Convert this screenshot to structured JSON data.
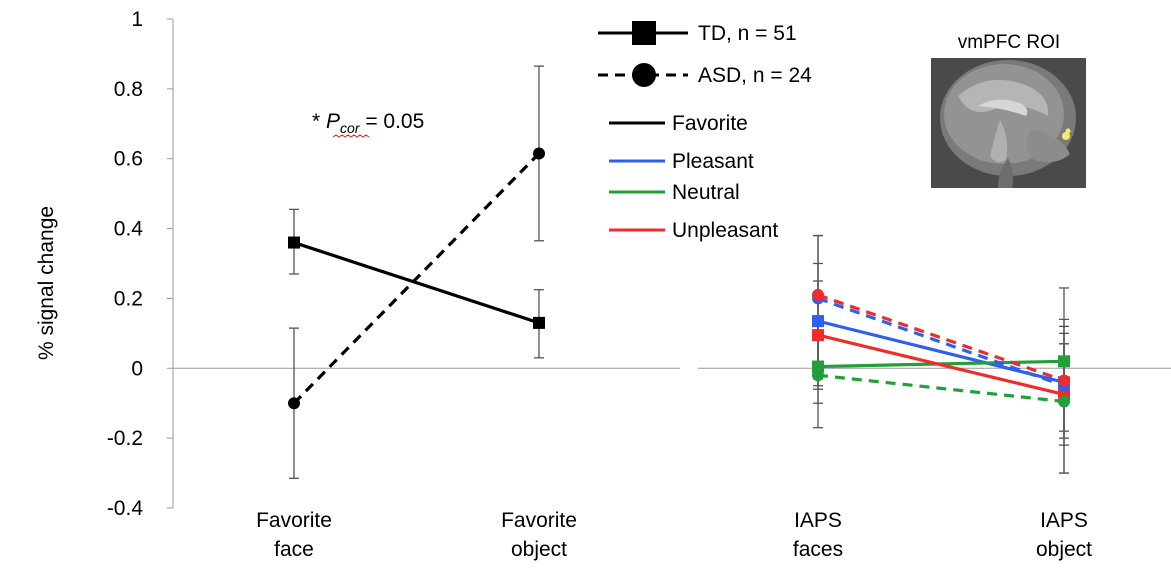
{
  "chart_data": {
    "type": "line",
    "ylabel": "% signal change",
    "ylim": [
      -0.4,
      1
    ],
    "yticks": [
      "1",
      "0.8",
      "0.6",
      "0.4",
      "0.2",
      "0",
      "-0.2",
      "-0.4"
    ],
    "grid": false,
    "legend_placement": "top-right",
    "annotation": {
      "prefix": "* ",
      "symbol": "P",
      "subscript": "cor",
      "suffix": " = 0.05"
    },
    "inset_title": "vmPFC ROI",
    "legend": {
      "groups": [
        {
          "label": "TD, n = 51",
          "style": "solid",
          "marker": "square"
        },
        {
          "label": "ASD, n = 24",
          "style": "dashed",
          "marker": "circle"
        }
      ],
      "conditions": [
        {
          "label": "Favorite",
          "color": "#000000"
        },
        {
          "label": "Pleasant",
          "color": "#2f5ff0"
        },
        {
          "label": "Neutral",
          "color": "#21a03a"
        },
        {
          "label": "Unpleasant",
          "color": "#ef2b2b"
        }
      ]
    },
    "panels": [
      {
        "categories": [
          [
            "Favorite",
            "face"
          ],
          [
            "Favorite",
            "object"
          ]
        ],
        "series": [
          {
            "group": "TD",
            "condition": "Favorite",
            "color": "#000000",
            "style": "solid",
            "marker": "square",
            "values": [
              0.36,
              0.13
            ],
            "err_low": [
              0.27,
              0.03
            ],
            "err_high": [
              0.455,
              0.225
            ]
          },
          {
            "group": "ASD",
            "condition": "Favorite",
            "color": "#000000",
            "style": "dashed",
            "marker": "circle",
            "values": [
              -0.1,
              0.615
            ],
            "err_low": [
              -0.315,
              0.365
            ],
            "err_high": [
              0.115,
              0.865
            ]
          }
        ]
      },
      {
        "categories": [
          [
            "IAPS",
            "faces"
          ],
          [
            "IAPS",
            "object"
          ]
        ],
        "series": [
          {
            "group": "TD",
            "condition": "Pleasant",
            "color": "#2f5ff0",
            "style": "solid",
            "marker": "square",
            "values": [
              0.135,
              -0.04
            ],
            "err_low": [
              -0.03,
              -0.18
            ],
            "err_high": [
              0.3,
              0.1
            ]
          },
          {
            "group": "ASD",
            "condition": "Pleasant",
            "color": "#2f5ff0",
            "style": "dashed",
            "marker": "circle",
            "values": [
              0.2,
              -0.05
            ],
            "err_low": [
              -0.05,
              -0.2
            ],
            "err_high": [
              0.38,
              0.12
            ]
          },
          {
            "group": "TD",
            "condition": "Neutral",
            "color": "#21a03a",
            "style": "solid",
            "marker": "square",
            "values": [
              0.005,
              0.02
            ],
            "err_low": [
              -0.1,
              -0.1
            ],
            "err_high": [
              0.15,
              0.14
            ]
          },
          {
            "group": "ASD",
            "condition": "Neutral",
            "color": "#21a03a",
            "style": "dashed",
            "marker": "circle",
            "values": [
              -0.02,
              -0.095
            ],
            "err_low": [
              -0.17,
              -0.3
            ],
            "err_high": [
              0.12,
              0.07
            ]
          },
          {
            "group": "TD",
            "condition": "Unpleasant",
            "color": "#ef2b2b",
            "style": "solid",
            "marker": "square",
            "values": [
              0.095,
              -0.075
            ],
            "err_low": [
              -0.06,
              -0.22
            ],
            "err_high": [
              0.25,
              0.07
            ]
          },
          {
            "group": "ASD",
            "condition": "Unpleasant",
            "color": "#ef2b2b",
            "style": "dashed",
            "marker": "circle",
            "values": [
              0.21,
              -0.035
            ],
            "err_low": [
              -0.01,
              -0.3
            ],
            "err_high": [
              0.38,
              0.23
            ]
          }
        ]
      }
    ]
  }
}
